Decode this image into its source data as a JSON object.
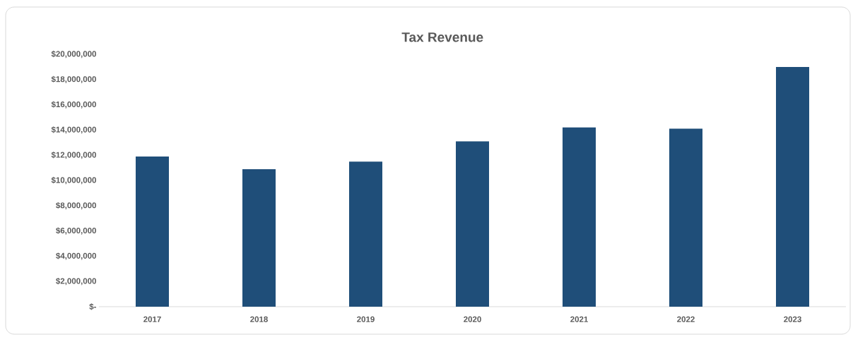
{
  "chart_data": {
    "type": "bar",
    "title": "Tax Revenue",
    "categories": [
      "2017",
      "2018",
      "2019",
      "2020",
      "2021",
      "2022",
      "2023"
    ],
    "values": [
      11900000,
      10900000,
      11500000,
      13100000,
      14200000,
      14100000,
      19000000
    ],
    "color": "#1f4e79",
    "ylim": [
      0,
      20000000
    ],
    "yticks": [
      {
        "value": 0,
        "label": "$-"
      },
      {
        "value": 2000000,
        "label": "$2,000,000"
      },
      {
        "value": 4000000,
        "label": "$4,000,000"
      },
      {
        "value": 6000000,
        "label": "$6,000,000"
      },
      {
        "value": 8000000,
        "label": "$8,000,000"
      },
      {
        "value": 10000000,
        "label": "$10,000,000"
      },
      {
        "value": 12000000,
        "label": "$12,000,000"
      },
      {
        "value": 14000000,
        "label": "$14,000,000"
      },
      {
        "value": 16000000,
        "label": "$16,000,000"
      },
      {
        "value": 18000000,
        "label": "$18,000,000"
      },
      {
        "value": 20000000,
        "label": "$20,000,000"
      }
    ]
  }
}
